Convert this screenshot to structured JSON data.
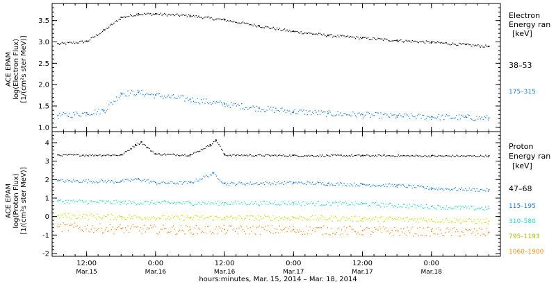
{
  "chart_data": [
    {
      "type": "scatter",
      "panel": "electron",
      "ylabel_lines": [
        "ACE EPAM",
        "log(Electron Flux)",
        "[1/(cm²s ster MeV)]"
      ],
      "ylim": [
        0.9,
        3.9
      ],
      "yticks": [
        1.0,
        1.5,
        2.0,
        2.5,
        3.0,
        3.5
      ],
      "ytick_labels": [
        "1.0",
        "1.5",
        "2.0",
        "2.5",
        "3.0",
        "3.5"
      ],
      "legend_title_lines": [
        "Electron",
        "Energy ran",
        "[keV]"
      ],
      "series": [
        {
          "name": "38–53",
          "color": "#000000",
          "x": [
            7.0,
            12.0,
            15.0,
            18.0,
            21.0,
            24.0,
            30.0,
            36.0,
            42.0,
            48.0,
            54.0,
            60.0,
            66.0,
            72.0,
            78.0,
            82.0
          ],
          "values": [
            2.96,
            3.02,
            3.28,
            3.58,
            3.66,
            3.66,
            3.62,
            3.52,
            3.38,
            3.25,
            3.16,
            3.1,
            3.04,
            3.0,
            2.94,
            2.9
          ]
        },
        {
          "name": "175–315",
          "color": "#1a7fd6",
          "x": [
            7.0,
            12.0,
            15.0,
            18.0,
            21.0,
            24.0,
            30.0,
            36.0,
            42.0,
            48.0,
            54.0,
            60.0,
            66.0,
            72.0,
            78.0,
            82.0
          ],
          "values": [
            1.28,
            1.34,
            1.4,
            1.8,
            1.82,
            1.76,
            1.66,
            1.55,
            1.45,
            1.38,
            1.33,
            1.3,
            1.27,
            1.25,
            1.24,
            1.22
          ]
        }
      ]
    },
    {
      "type": "scatter",
      "panel": "proton",
      "ylabel_lines": [
        "ACE EPAM",
        "log(Proton Flux)",
        "[1/(cm²s ster MeV)]"
      ],
      "ylim": [
        -2.15,
        4.6
      ],
      "yticks": [
        -2,
        -1,
        0,
        1,
        2,
        3,
        4
      ],
      "ytick_labels": [
        "-2",
        "-1",
        "0",
        "1",
        "2",
        "3",
        "4"
      ],
      "legend_title_lines": [
        "Proton",
        "Energy ran",
        "[keV]"
      ],
      "series": [
        {
          "name": "47–68",
          "color": "#000000",
          "x": [
            7.0,
            18.0,
            20.5,
            21.5,
            22.5,
            24.0,
            30.0,
            33.5,
            34.5,
            36.0,
            48.0,
            60.0,
            72.0,
            82.0
          ],
          "values": [
            3.35,
            3.35,
            3.9,
            4.05,
            3.75,
            3.4,
            3.35,
            3.9,
            4.15,
            3.35,
            3.32,
            3.32,
            3.3,
            3.3
          ]
        },
        {
          "name": "115–195",
          "color": "#1a7fd6",
          "x": [
            7.0,
            18.0,
            21.0,
            24.0,
            30.0,
            34.0,
            36.0,
            48.0,
            54.0,
            60.0,
            66.0,
            72.0,
            82.0
          ],
          "values": [
            1.95,
            1.92,
            2.05,
            1.85,
            1.85,
            2.35,
            1.8,
            1.85,
            1.8,
            1.75,
            1.7,
            1.55,
            1.45
          ]
        },
        {
          "name": "310–580",
          "color": "#22d8c8",
          "x": [
            7.0,
            18.0,
            30.0,
            36.0,
            48.0,
            60.0,
            72.0,
            82.0
          ],
          "values": [
            0.85,
            0.78,
            0.75,
            0.75,
            0.75,
            0.7,
            0.55,
            0.45
          ]
        },
        {
          "name": "795–1193",
          "color": "#c8e000",
          "x": [
            7.0,
            18.0,
            30.0,
            36.0,
            48.0,
            60.0,
            72.0,
            82.0
          ],
          "values": [
            0.05,
            0.0,
            -0.05,
            -0.05,
            -0.05,
            -0.1,
            -0.15,
            -0.25
          ]
        },
        {
          "name": "1060–1900",
          "color": "#f08c14",
          "x": [
            7.0,
            18.0,
            30.0,
            36.0,
            48.0,
            60.0,
            72.0,
            82.0
          ],
          "values": [
            -0.55,
            -0.65,
            -0.7,
            -0.7,
            -0.7,
            -0.75,
            -0.8,
            -0.85
          ]
        }
      ]
    }
  ],
  "x_axis": {
    "range_hours": [
      6.0,
      84.0
    ],
    "ticks": [
      {
        "hour": 12,
        "time": "12:00",
        "date": "Mar.15"
      },
      {
        "hour": 24,
        "time": "0:00",
        "date": "Mar.16"
      },
      {
        "hour": 36,
        "time": "12:00",
        "date": "Mar.16"
      },
      {
        "hour": 48,
        "time": "0:00",
        "date": "Mar.17"
      },
      {
        "hour": 60,
        "time": "12:00",
        "date": "Mar.17"
      },
      {
        "hour": 72,
        "time": "0:00",
        "date": "Mar.18"
      }
    ],
    "minor_tick_step_hours": 2,
    "xlabel": "hours:minutes, Mar. 15, 2014 – Mar. 18, 2014"
  }
}
